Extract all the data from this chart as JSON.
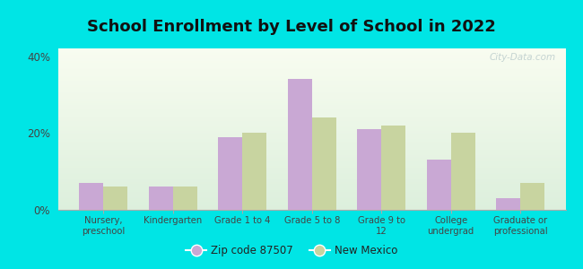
{
  "title": "School Enrollment by Level of School in 2022",
  "categories": [
    "Nursery,\npreschool",
    "Kindergarten",
    "Grade 1 to 4",
    "Grade 5 to 8",
    "Grade 9 to\n12",
    "College\nundergrad",
    "Graduate or\nprofessional"
  ],
  "zip_values": [
    7,
    6,
    19,
    34,
    21,
    13,
    3
  ],
  "nm_values": [
    6,
    6,
    20,
    24,
    22,
    20,
    7
  ],
  "zip_color": "#C9A8D4",
  "nm_color": "#C8D4A0",
  "background_outer": "#00E5E5",
  "ylim": [
    0,
    42
  ],
  "yticks": [
    0,
    20,
    40
  ],
  "ytick_labels": [
    "0%",
    "20%",
    "40%"
  ],
  "title_fontsize": 13,
  "legend_label_zip": "Zip code 87507",
  "legend_label_nm": "New Mexico",
  "bar_width": 0.35,
  "watermark": "City-Data.com"
}
